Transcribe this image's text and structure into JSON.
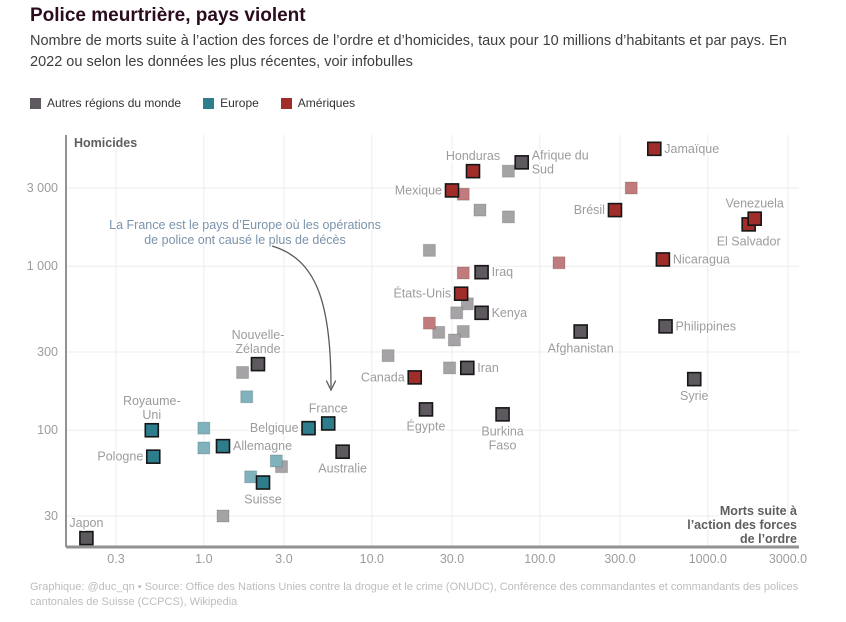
{
  "header": {
    "title": "Police meurtrière, pays violent",
    "subtitle": "Nombre de morts suite à l’action des forces de l’ordre et d’homicides, taux pour 10 millions d’habitants et par pays. En 2022 ou selon les données les plus récentes, voir infobulles"
  },
  "footer": {
    "credit": "Graphique: @duc_qn • Source: Office des Nations Unies contre la drogue et le crime (ONUDC), Conférence des commandantes et commandants des polices cantonales de Suisse (CCPCS), Wikipedia"
  },
  "chart_data": {
    "type": "scatter",
    "title": "Police meurtrière, pays violent",
    "xlabel": "Morts suite à l’action des forces de l’ordre",
    "xlabel_lines": [
      "Morts suite à",
      "l’action des forces",
      "de l’ordre"
    ],
    "ylabel": "Homicides",
    "x_scale": "log",
    "y_scale": "log",
    "xlim": [
      0.15,
      3500
    ],
    "ylim": [
      19,
      6300
    ],
    "grid": true,
    "x_ticks": [
      0.3,
      1,
      3,
      10,
      30,
      100,
      300,
      1000,
      3000
    ],
    "x_tick_labels": [
      "0.3",
      "1.0",
      "3.0",
      "10.0",
      "30.0",
      "100.0",
      "300.0",
      "1000.0",
      "3000.0"
    ],
    "y_ticks": [
      3000,
      1000,
      300,
      100,
      30
    ],
    "y_tick_labels": [
      "3 000",
      "1 000",
      "300",
      "100",
      "30"
    ],
    "legend_order": [
      "autres",
      "europe",
      "ameriques"
    ],
    "regions": {
      "autres": {
        "label": "Autres régions du monde",
        "strong": "#5d595f",
        "light": "#a6a3a6"
      },
      "europe": {
        "label": "Europe",
        "strong": "#2d7d8d",
        "light": "#7fb2bd"
      },
      "ameriques": {
        "label": "Amériques",
        "strong": "#a02d29",
        "light": "#c17b7c"
      }
    },
    "annotation": {
      "lines": [
        "La France est le pays d’Europe où les opérations",
        "de police ont causé le plus de décès"
      ],
      "color": "#7b93ab",
      "arrow_to": "France"
    },
    "points": [
      {
        "x": 65,
        "y": 3800,
        "region": "autres"
      },
      {
        "x": 44,
        "y": 2200,
        "region": "autres"
      },
      {
        "x": 65,
        "y": 2000,
        "region": "autres"
      },
      {
        "x": 22,
        "y": 1250,
        "region": "autres"
      },
      {
        "x": 37,
        "y": 590,
        "region": "autres"
      },
      {
        "x": 32,
        "y": 520,
        "region": "autres"
      },
      {
        "x": 35,
        "y": 400,
        "region": "autres"
      },
      {
        "x": 25,
        "y": 395,
        "region": "autres"
      },
      {
        "x": 31,
        "y": 355,
        "region": "autres"
      },
      {
        "x": 12.5,
        "y": 285,
        "region": "autres"
      },
      {
        "x": 29,
        "y": 240,
        "region": "autres"
      },
      {
        "x": 1.7,
        "y": 225,
        "region": "autres"
      },
      {
        "x": 2.9,
        "y": 60,
        "region": "autres"
      },
      {
        "x": 1.3,
        "y": 30,
        "region": "autres"
      },
      {
        "x": 35,
        "y": 2750,
        "region": "ameriques"
      },
      {
        "x": 350,
        "y": 3000,
        "region": "ameriques"
      },
      {
        "x": 130,
        "y": 1050,
        "region": "ameriques"
      },
      {
        "x": 35,
        "y": 910,
        "region": "ameriques"
      },
      {
        "x": 22,
        "y": 450,
        "region": "ameriques"
      },
      {
        "x": 1.8,
        "y": 160,
        "region": "europe"
      },
      {
        "x": 1.0,
        "y": 103,
        "region": "europe"
      },
      {
        "x": 1.0,
        "y": 78,
        "region": "europe"
      },
      {
        "x": 2.7,
        "y": 65,
        "region": "europe"
      },
      {
        "x": 1.9,
        "y": 52,
        "region": "europe"
      },
      {
        "country": "Japon",
        "x": 0.2,
        "y": 22,
        "region": "autres",
        "side": "above"
      },
      {
        "country": "Royaume-\nUni",
        "x": 0.49,
        "y": 100,
        "region": "europe",
        "side": "above"
      },
      {
        "country": "Pologne",
        "x": 0.5,
        "y": 69,
        "region": "europe",
        "side": "left"
      },
      {
        "country": "Allemagne",
        "x": 1.3,
        "y": 80,
        "region": "europe",
        "side": "right"
      },
      {
        "country": "Suisse",
        "x": 2.25,
        "y": 48,
        "region": "europe",
        "side": "below"
      },
      {
        "country": "Belgique",
        "x": 4.2,
        "y": 103,
        "region": "europe",
        "side": "left"
      },
      {
        "country": "France",
        "x": 5.5,
        "y": 110,
        "region": "europe",
        "side": "above"
      },
      {
        "country": "Nouvelle-\nZélande",
        "x": 2.1,
        "y": 253,
        "region": "autres",
        "side": "above"
      },
      {
        "country": "Australie",
        "x": 6.7,
        "y": 74,
        "region": "autres",
        "side": "below"
      },
      {
        "country": "Canada",
        "x": 18,
        "y": 210,
        "region": "ameriques",
        "side": "left"
      },
      {
        "country": "Égypte",
        "x": 21,
        "y": 134,
        "region": "autres",
        "side": "below"
      },
      {
        "country": "États-Unis",
        "x": 34,
        "y": 680,
        "region": "ameriques",
        "side": "left"
      },
      {
        "country": "Kenya",
        "x": 45,
        "y": 520,
        "region": "autres",
        "side": "right"
      },
      {
        "country": "Iran",
        "x": 37,
        "y": 240,
        "region": "autres",
        "side": "right"
      },
      {
        "country": "Iraq",
        "x": 45,
        "y": 920,
        "region": "autres",
        "side": "right"
      },
      {
        "country": "Burkina\nFaso",
        "x": 60,
        "y": 125,
        "region": "autres",
        "side": "below"
      },
      {
        "country": "Afghanistan",
        "x": 175,
        "y": 400,
        "region": "autres",
        "side": "below"
      },
      {
        "country": "Philippines",
        "x": 560,
        "y": 430,
        "region": "autres",
        "side": "right"
      },
      {
        "country": "Syrie",
        "x": 830,
        "y": 205,
        "region": "autres",
        "side": "below"
      },
      {
        "country": "Mexique",
        "x": 30,
        "y": 2900,
        "region": "ameriques",
        "side": "left"
      },
      {
        "country": "Honduras",
        "x": 40,
        "y": 3800,
        "region": "ameriques",
        "side": "above"
      },
      {
        "country": "Afrique du\nSud",
        "x": 78,
        "y": 4300,
        "region": "autres",
        "side": "right"
      },
      {
        "country": "Jamaïque",
        "x": 480,
        "y": 5200,
        "region": "ameriques",
        "side": "right"
      },
      {
        "country": "Brésil",
        "x": 280,
        "y": 2200,
        "region": "ameriques",
        "side": "left"
      },
      {
        "country": "El Salvador",
        "x": 1750,
        "y": 1800,
        "region": "ameriques",
        "side": "below"
      },
      {
        "country": "Venezuela",
        "x": 1900,
        "y": 1950,
        "region": "ameriques",
        "side": "above"
      },
      {
        "country": "Nicaragua",
        "x": 540,
        "y": 1100,
        "region": "ameriques",
        "side": "right"
      }
    ]
  }
}
